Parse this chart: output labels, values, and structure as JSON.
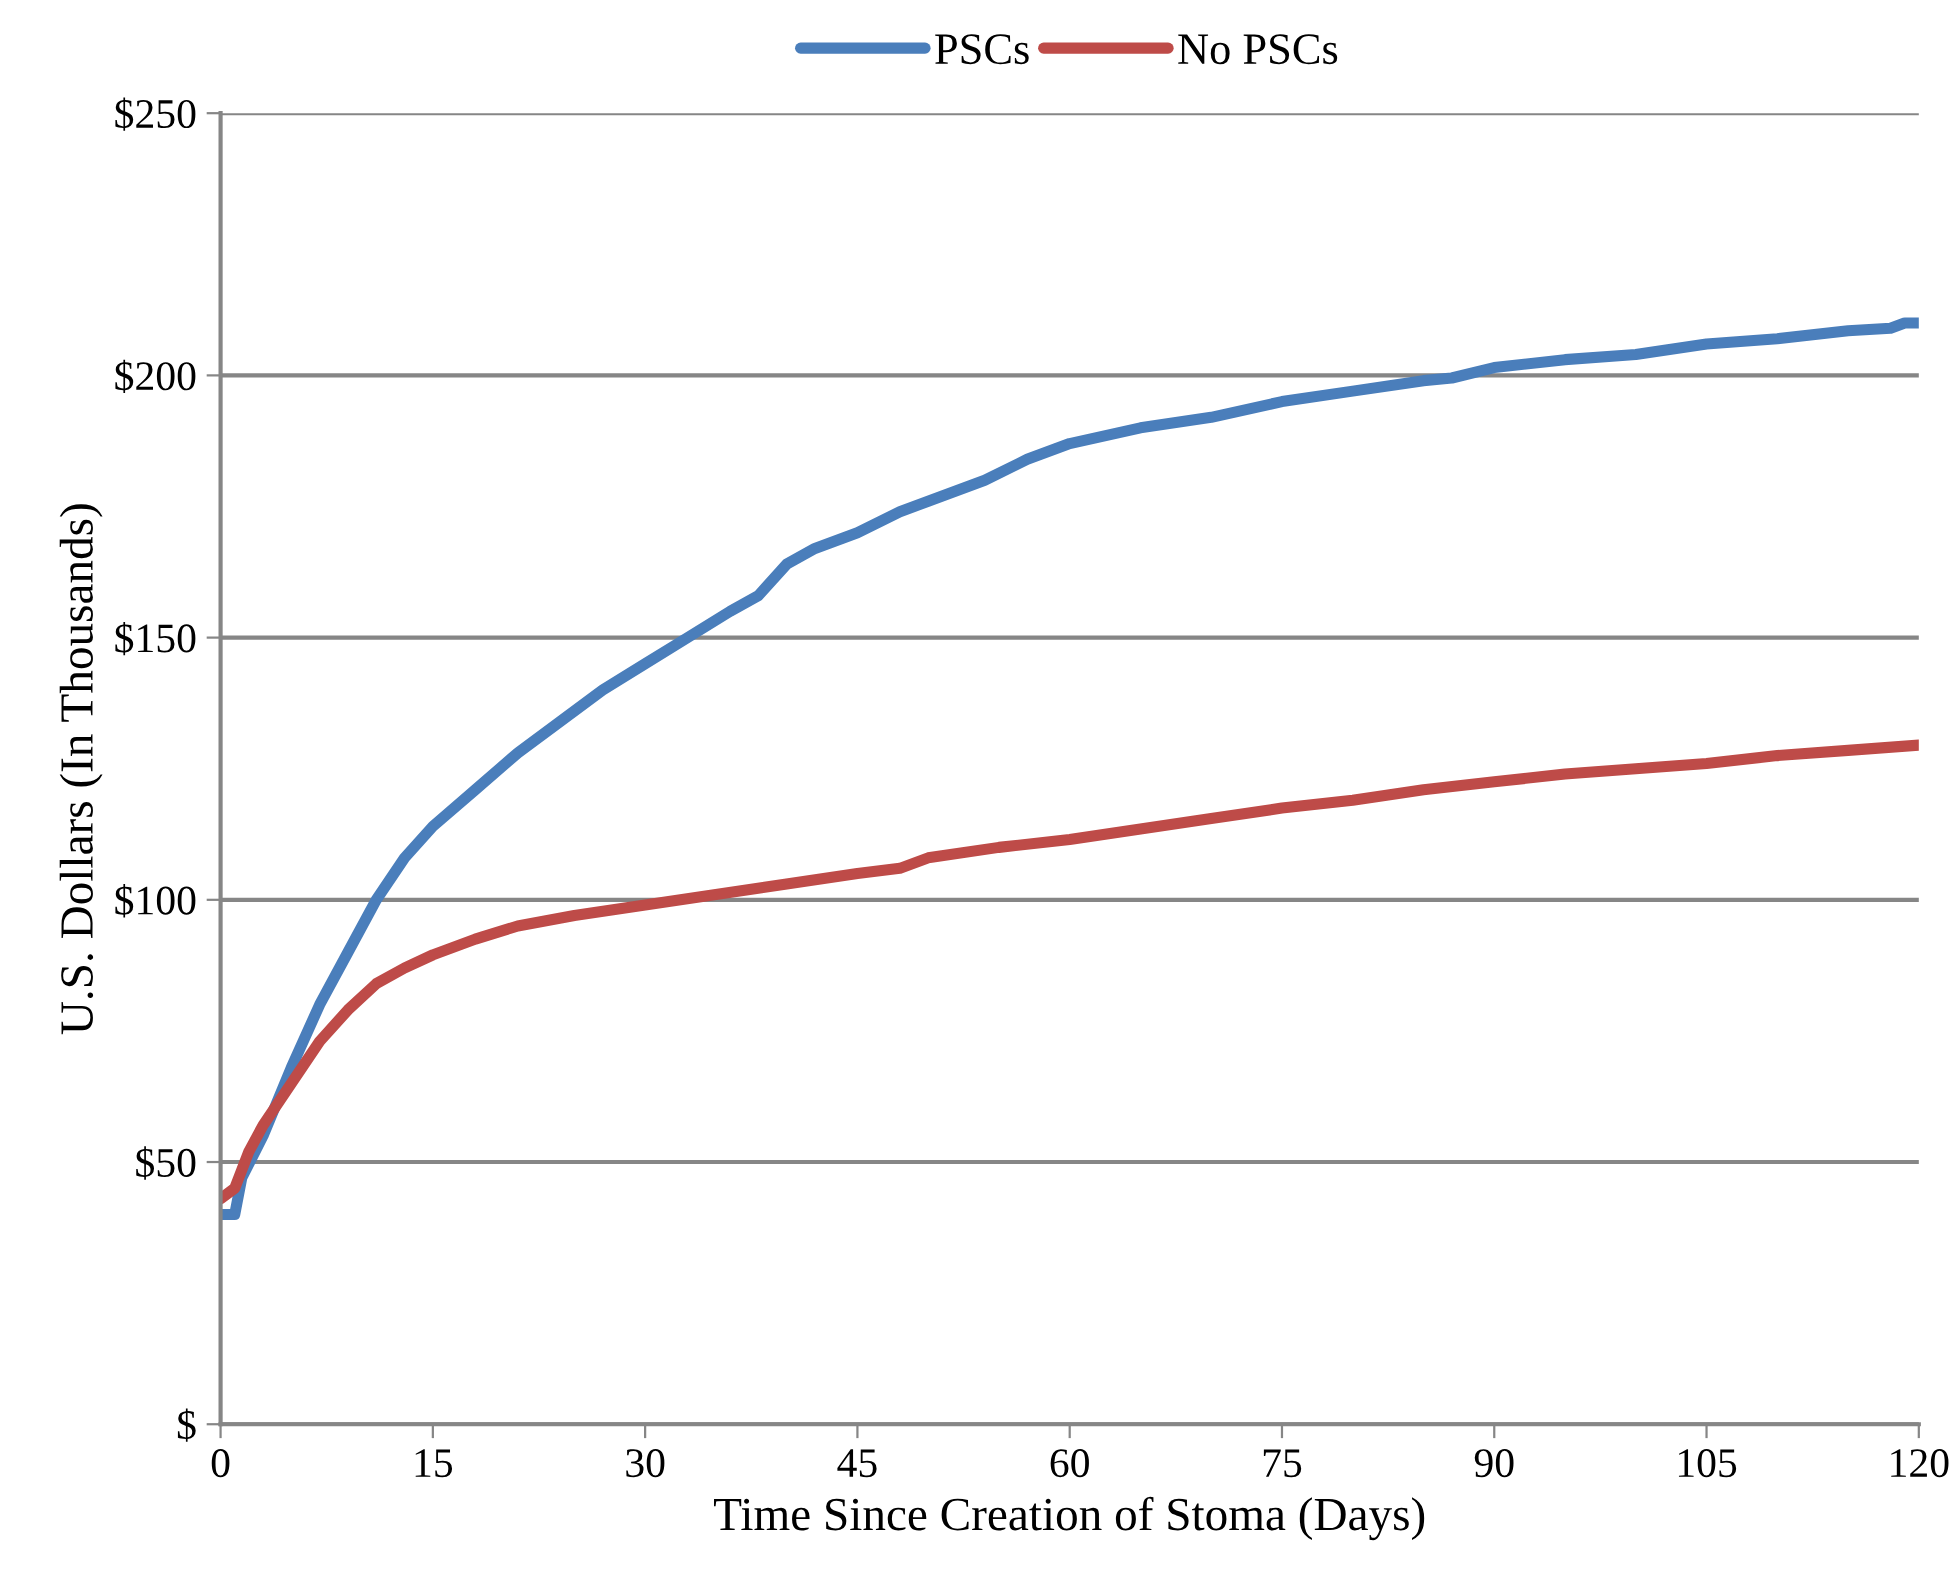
{
  "chart_data": {
    "type": "line",
    "xlabel": "Time Since Creation of Stoma (Days)",
    "ylabel": "U.S. Dollars (In Thousands)",
    "xlim": [
      0,
      120
    ],
    "xticks": [
      0,
      15,
      30,
      45,
      60,
      75,
      90,
      105,
      120
    ],
    "ylim": [
      0,
      250
    ],
    "yticks": [
      {
        "value": 0,
        "label": "$"
      },
      {
        "value": 50,
        "label": "$50"
      },
      {
        "value": 100,
        "label": "$100"
      },
      {
        "value": 150,
        "label": "$150"
      },
      {
        "value": 200,
        "label": "$200"
      },
      {
        "value": 250,
        "label": "$250"
      }
    ],
    "grid": "y",
    "legend": "top",
    "line_style": "solid",
    "marker": "none",
    "series": [
      {
        "name": "PSCs",
        "color": "#4a7ebb",
        "x": [
          0,
          1,
          1.5,
          3,
          5,
          7,
          9,
          11,
          13,
          15,
          18,
          21,
          24,
          27,
          30,
          33,
          36,
          38,
          40,
          42,
          45,
          48,
          50,
          54,
          57,
          60,
          65,
          70,
          75,
          80,
          85,
          87,
          90,
          95,
          100,
          105,
          110,
          115,
          118,
          119,
          120
        ],
        "values": [
          40,
          40,
          47,
          55,
          68,
          80,
          90,
          100,
          108,
          114,
          121,
          128,
          134,
          140,
          145,
          150,
          155,
          158,
          164,
          167,
          170,
          174,
          176,
          180,
          184,
          187,
          190,
          192,
          195,
          197,
          199,
          199.5,
          201.5,
          203,
          204,
          206,
          207,
          208.5,
          209,
          210,
          210
        ]
      },
      {
        "name": "No PSCs",
        "color": "#be4b48",
        "x": [
          0,
          1,
          2,
          3,
          5,
          7,
          9,
          11,
          13,
          15,
          18,
          21,
          25,
          30,
          35,
          40,
          45,
          48,
          50,
          55,
          60,
          65,
          70,
          75,
          80,
          85,
          90,
          95,
          100,
          105,
          110,
          115,
          120
        ],
        "values": [
          43,
          45,
          52,
          57,
          65,
          73,
          79,
          84,
          87,
          89.5,
          92.5,
          95,
          97,
          99,
          101,
          103,
          105,
          106,
          108,
          110,
          111.5,
          113.5,
          115.5,
          117.5,
          119,
          121,
          122.5,
          124,
          125,
          126,
          127.5,
          128.5,
          129.5
        ]
      }
    ]
  }
}
